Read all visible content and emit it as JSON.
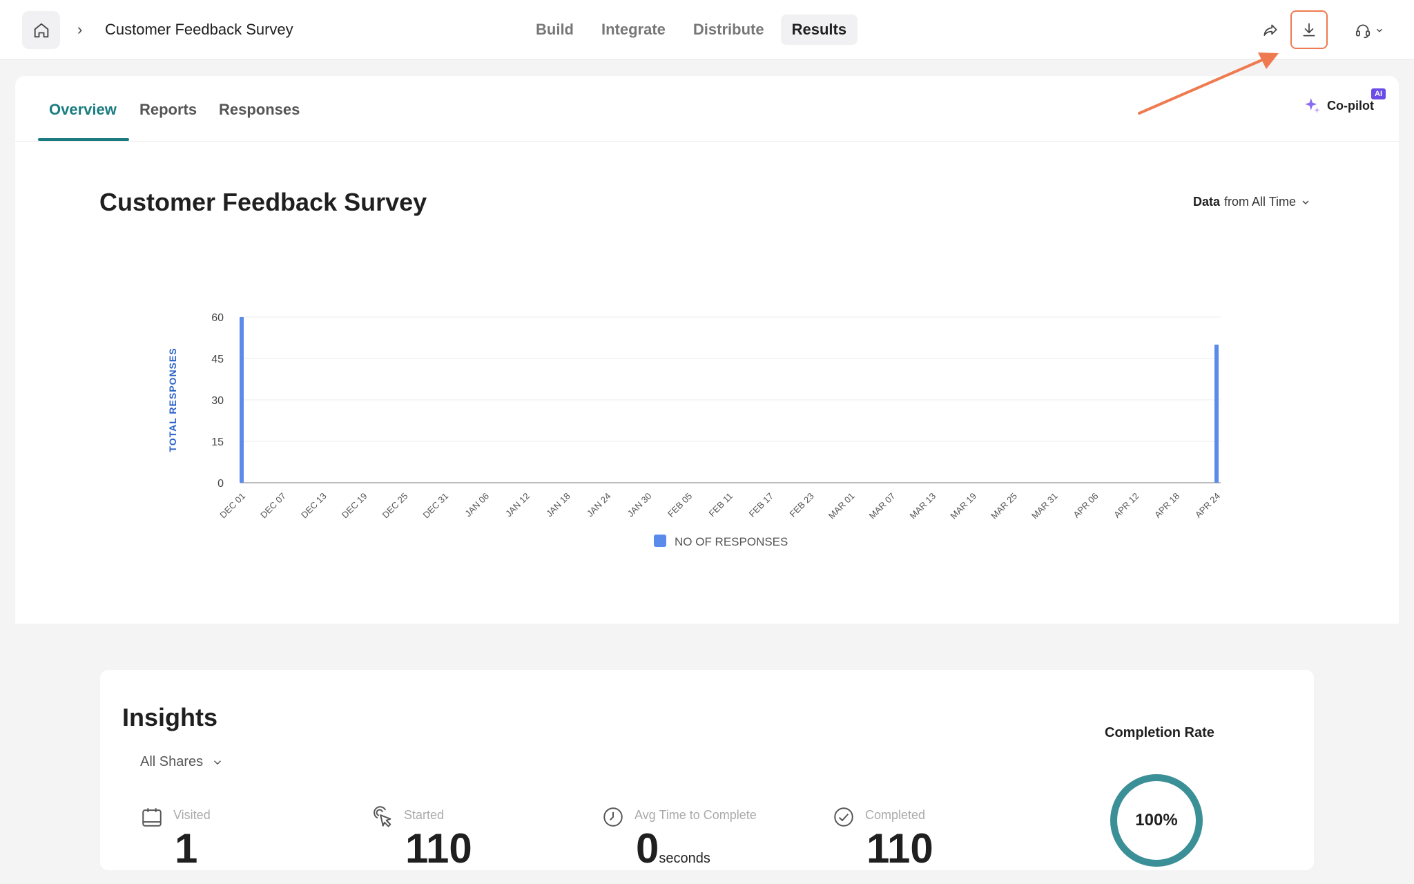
{
  "header": {
    "breadcrumb_sep": "›",
    "title": "Customer Feedback Survey",
    "nav": [
      {
        "label": "Build",
        "active": false
      },
      {
        "label": "Integrate",
        "active": false
      },
      {
        "label": "Distribute",
        "active": false
      },
      {
        "label": "Results",
        "active": true
      }
    ],
    "icons": {
      "home": "home-icon",
      "share": "share-icon",
      "download": "download-icon",
      "support": "headset-icon"
    }
  },
  "subtabs": [
    {
      "label": "Overview",
      "active": true
    },
    {
      "label": "Reports",
      "active": false
    },
    {
      "label": "Responses",
      "active": false
    }
  ],
  "copilot": {
    "label": "Co-pilot",
    "badge": "AI"
  },
  "survey": {
    "title": "Customer Feedback Survey",
    "filter_bold": "Data",
    "filter_value": "from All Time"
  },
  "chart_data": {
    "type": "bar",
    "title": "",
    "xlabel": "",
    "ylabel": "TOTAL RESPONSES",
    "ylim": [
      0,
      60
    ],
    "yticks": [
      0,
      15,
      30,
      45,
      60
    ],
    "grid": true,
    "legend_position": "bottom",
    "categories": [
      "DEC 01",
      "DEC 07",
      "DEC 13",
      "DEC 19",
      "DEC 25",
      "DEC 31",
      "JAN 06",
      "JAN 12",
      "JAN 18",
      "JAN 24",
      "JAN 30",
      "FEB 05",
      "FEB 11",
      "FEB 17",
      "FEB 23",
      "MAR 01",
      "MAR 07",
      "MAR 13",
      "MAR 19",
      "MAR 25",
      "MAR 31",
      "APR 06",
      "APR 12",
      "APR 18",
      "APR 24"
    ],
    "series": [
      {
        "name": "NO OF RESPONSES",
        "color": "#5b8bea",
        "values": [
          60,
          0,
          0,
          0,
          0,
          0,
          0,
          0,
          0,
          0,
          0,
          0,
          0,
          0,
          0,
          0,
          0,
          0,
          0,
          0,
          0,
          0,
          0,
          0,
          50
        ]
      }
    ]
  },
  "insights": {
    "title": "Insights",
    "shares_filter": "All Shares",
    "metrics": [
      {
        "label": "Visited",
        "value": "1",
        "unit": "",
        "icon": "calendar-icon"
      },
      {
        "label": "Started",
        "value": "110",
        "unit": "",
        "icon": "pointer-click-icon"
      },
      {
        "label": "Avg Time to Complete",
        "value": "0",
        "unit": "seconds",
        "icon": "clock-icon"
      },
      {
        "label": "Completed",
        "value": "110",
        "unit": "",
        "icon": "check-circle-icon"
      }
    ],
    "completion": {
      "label": "Completion Rate",
      "value": "100%",
      "fraction": 1.0
    }
  },
  "colors": {
    "accent": "#1a7c80",
    "highlight": "#ef7a4f",
    "bar": "#5b8bea",
    "ai": "#6b4ce6",
    "ring": "#3b8f96"
  }
}
